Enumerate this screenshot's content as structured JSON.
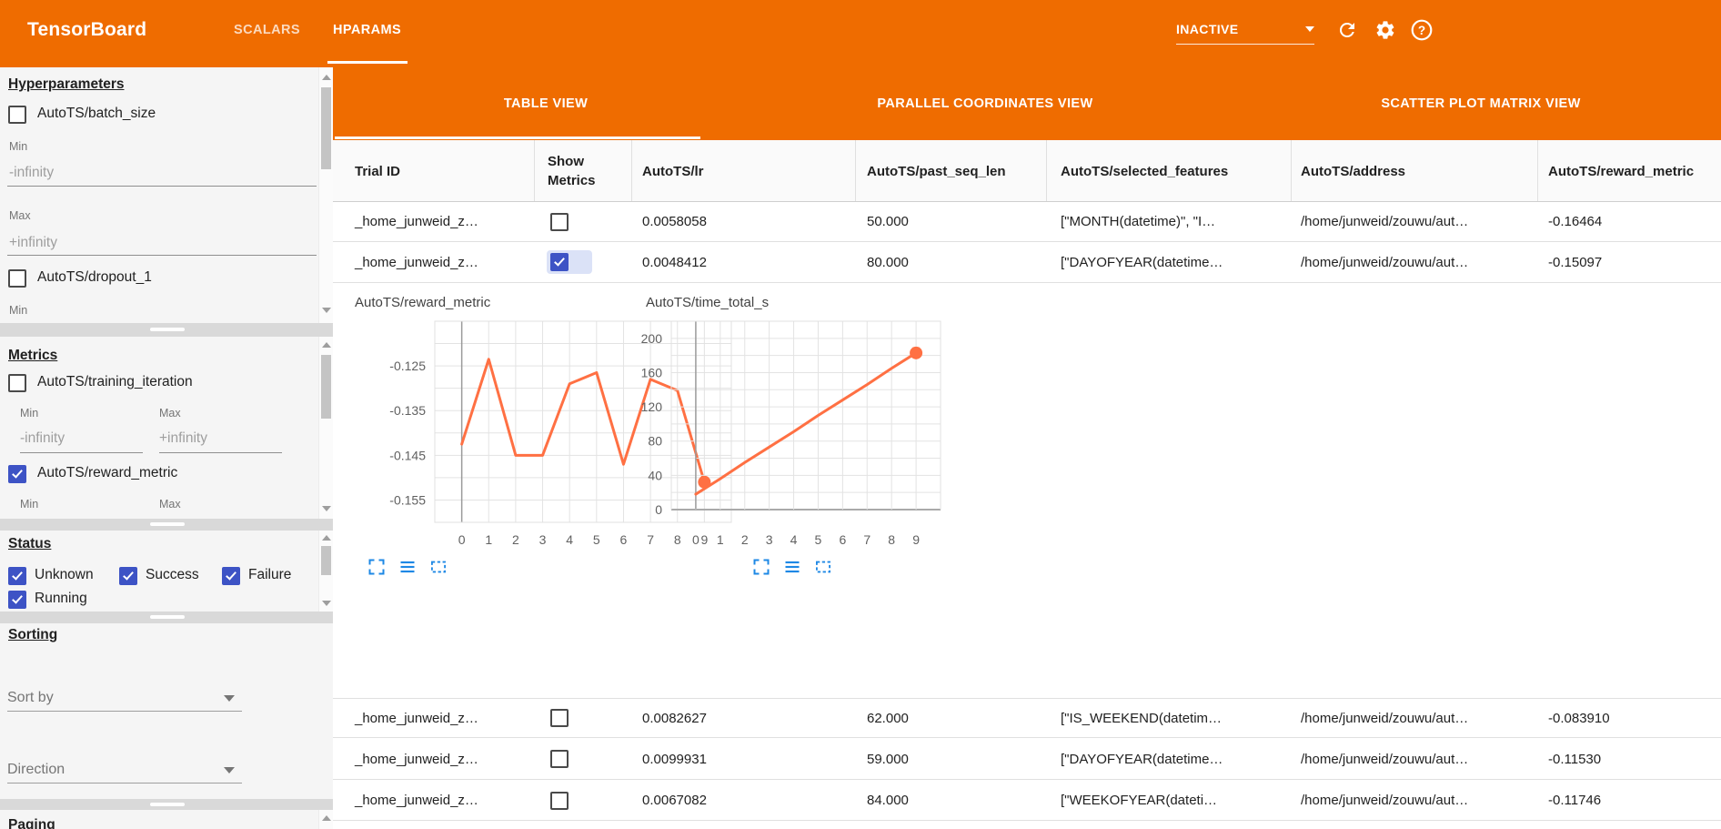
{
  "appbar": {
    "logo": "TensorBoard",
    "tabs": [
      {
        "label": "SCALARS",
        "active": false
      },
      {
        "label": "HPARAMS",
        "active": true
      }
    ],
    "reload_select_value": "INACTIVE",
    "icons": [
      "refresh-icon",
      "settings-gear-icon",
      "help-icon"
    ]
  },
  "sidebar": {
    "hyperparameters": {
      "heading": "Hyperparameters",
      "item1": {
        "label": "AutoTS/batch_size",
        "checked": false
      },
      "min_label": "Min",
      "min_value": "-infinity",
      "max_label": "Max",
      "max_value": "+infinity",
      "item2": {
        "label": "AutoTS/dropout_1",
        "checked": false
      },
      "trailing_label": "Min"
    },
    "metrics": {
      "heading": "Metrics",
      "item1": {
        "label": "AutoTS/training_iteration",
        "checked": false
      },
      "min_label": "Min",
      "min_value": "-infinity",
      "max_label": "Max",
      "max_value": "+infinity",
      "item2": {
        "label": "AutoTS/reward_metric",
        "checked": true
      },
      "min2_label": "Min",
      "max2_label": "Max"
    },
    "status": {
      "heading": "Status",
      "items": [
        {
          "label": "Unknown",
          "checked": true
        },
        {
          "label": "Success",
          "checked": true
        },
        {
          "label": "Failure",
          "checked": true
        },
        {
          "label": "Running",
          "checked": true
        }
      ]
    },
    "sorting": {
      "heading": "Sorting",
      "sort_by_placeholder": "Sort by",
      "direction_placeholder": "Direction"
    },
    "paging": {
      "heading": "Paging"
    }
  },
  "main": {
    "view_tabs": [
      {
        "label": "TABLE VIEW",
        "active": true
      },
      {
        "label": "PARALLEL COORDINATES VIEW",
        "active": false
      },
      {
        "label": "SCATTER PLOT MATRIX VIEW",
        "active": false
      }
    ],
    "table": {
      "columns": [
        "Trial ID",
        "Show Metrics",
        "AutoTS/lr",
        "AutoTS/past_seq_len",
        "AutoTS/selected_features",
        "AutoTS/address",
        "AutoTS/reward_metric"
      ],
      "rows": [
        {
          "trial_id": "_home_junweid_z…",
          "show_metrics": false,
          "lr": "0.0058058",
          "past_seq_len": "50.000",
          "selected_features": "[\"MONTH(datetime)\", \"I…",
          "address": "/home/junweid/zouwu/aut…",
          "reward_metric": "-0.16464"
        },
        {
          "trial_id": "_home_junweid_z…",
          "show_metrics": true,
          "lr": "0.0048412",
          "past_seq_len": "80.000",
          "selected_features": "[\"DAYOFYEAR(datetime…",
          "address": "/home/junweid/zouwu/aut…",
          "reward_metric": "-0.15097"
        },
        {
          "trial_id": "_home_junweid_z…",
          "show_metrics": false,
          "lr": "0.0082627",
          "past_seq_len": "62.000",
          "selected_features": "[\"IS_WEEKEND(datetim…",
          "address": "/home/junweid/zouwu/aut…",
          "reward_metric": "-0.083910"
        },
        {
          "trial_id": "_home_junweid_z…",
          "show_metrics": false,
          "lr": "0.0099931",
          "past_seq_len": "59.000",
          "selected_features": "[\"DAYOFYEAR(datetime…",
          "address": "/home/junweid/zouwu/aut…",
          "reward_metric": "-0.11530"
        },
        {
          "trial_id": "_home_junweid_z…",
          "show_metrics": false,
          "lr": "0.0067082",
          "past_seq_len": "84.000",
          "selected_features": "[\"WEEKOFYEAR(dateti…",
          "address": "/home/junweid/zouwu/aut…",
          "reward_metric": "-0.11746"
        }
      ]
    }
  },
  "chart_data": [
    {
      "type": "line",
      "title": "AutoTS/reward_metric",
      "x": [
        0,
        1,
        2,
        3,
        4,
        5,
        6,
        7,
        8,
        9
      ],
      "values": [
        -0.1425,
        -0.1235,
        -0.145,
        -0.145,
        -0.129,
        -0.1265,
        -0.147,
        -0.128,
        -0.1305,
        -0.151
      ],
      "xlabel": "",
      "ylabel": "",
      "xtick_labels": [
        "0",
        "1",
        "2",
        "3",
        "4",
        "5",
        "6",
        "7",
        "8",
        "9"
      ],
      "ytick_values": [
        -0.125,
        -0.135,
        -0.145,
        -0.155
      ],
      "ytick_labels": [
        "-0.125",
        "-0.135",
        "-0.145",
        "-0.155"
      ],
      "ylim": [
        -0.16,
        -0.115
      ],
      "grid": true,
      "legend": "none",
      "color": "#ff7043",
      "end_dot": true
    },
    {
      "type": "line",
      "title": "AutoTS/time_total_s",
      "x": [
        0,
        1,
        2,
        3,
        4,
        5,
        6,
        7,
        8,
        9
      ],
      "values": [
        18,
        36,
        55,
        73,
        91,
        110,
        128,
        146,
        165,
        183
      ],
      "xlabel": "",
      "ylabel": "",
      "xtick_labels": [
        "0",
        "1",
        "2",
        "3",
        "4",
        "5",
        "6",
        "7",
        "8",
        "9"
      ],
      "ytick_values": [
        200,
        160,
        120,
        80,
        40,
        0
      ],
      "ytick_labels": [
        "200",
        "160",
        "120",
        "80",
        "40",
        "0"
      ],
      "ylim": [
        0,
        220
      ],
      "grid": true,
      "legend": "none",
      "color": "#ff7043",
      "end_dot": true
    }
  ],
  "colors": {
    "appbar_orange": "#ef6c00",
    "checkbox_blue": "#3d53c5",
    "line_orange": "#ff7043",
    "chart_icon_blue": "#1e88e5"
  }
}
